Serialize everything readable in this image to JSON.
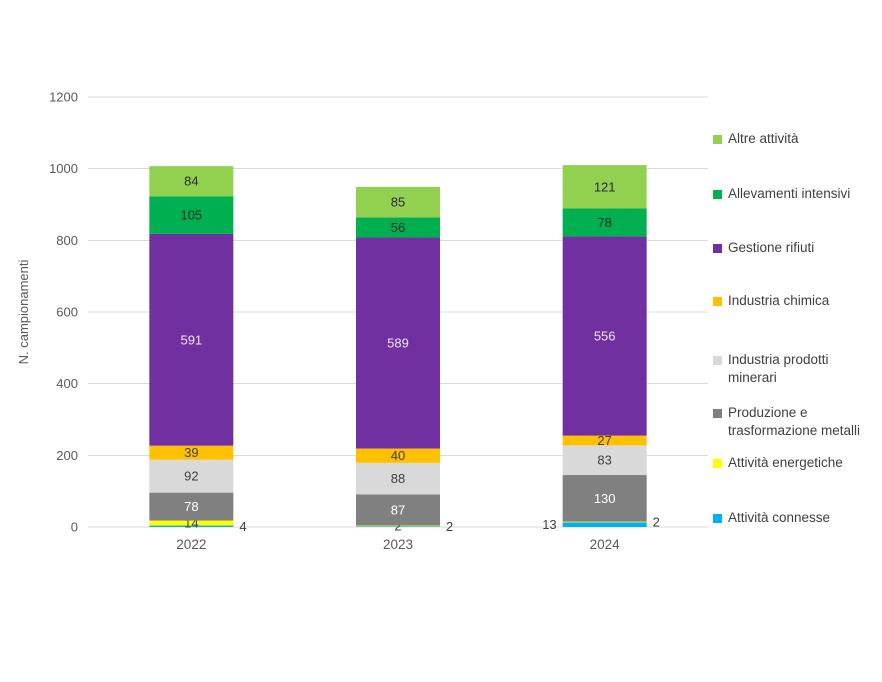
{
  "page": {
    "background_color": "#ffffff"
  },
  "chart_data": {
    "type": "bar",
    "variant": "stacked-vertical",
    "title": "",
    "xlabel": "",
    "ylabel": "N. campionamenti",
    "categories": [
      "2022",
      "2023",
      "2024"
    ],
    "ylim": [
      0,
      1200
    ],
    "yticks": [
      0,
      200,
      400,
      600,
      800,
      1000,
      1200
    ],
    "grid": "horizontal",
    "grid_color": "#d9d9d9",
    "tick_label_color": "#595959",
    "outside_label_color": "#404040",
    "legend_position": "right",
    "legend_order_note": "legend lists series top-of-stack first",
    "series": [
      {
        "name": "Attività connesse",
        "color": "#00b0f0",
        "values": [
          4,
          2,
          13
        ],
        "label_color": "#404040",
        "label_placement": [
          "outside-right",
          "outside-right",
          "outside-left"
        ]
      },
      {
        "name": "Attività energetiche",
        "color": "#ffff00",
        "values": [
          14,
          2,
          2
        ],
        "label_color": "#404040",
        "label_placement": [
          "center",
          "center",
          "outside-right"
        ]
      },
      {
        "name": "Produzione e trasformazione metalli",
        "color": "#808080",
        "values": [
          78,
          87,
          130
        ],
        "label_color": "#ffffff",
        "label_placement": [
          "center",
          "center",
          "center"
        ]
      },
      {
        "name": "Industria prodotti minerari",
        "color": "#d9d9d9",
        "values": [
          92,
          88,
          83
        ],
        "label_color": "#404040",
        "label_placement": [
          "center",
          "center",
          "center"
        ]
      },
      {
        "name": "Industria chimica",
        "color": "#ffc000",
        "values": [
          39,
          40,
          27
        ],
        "label_color": "#404040",
        "label_placement": [
          "center",
          "center",
          "center"
        ]
      },
      {
        "name": "Gestione rifiuti",
        "color": "#7030a0",
        "values": [
          591,
          589,
          556
        ],
        "label_color": "#f2e6f9",
        "label_placement": [
          "center",
          "center",
          "center"
        ]
      },
      {
        "name": "Allevamenti intensivi",
        "color": "#00b050",
        "values": [
          105,
          56,
          78
        ],
        "label_color": "#2a2a2a",
        "label_placement": [
          "center",
          "center",
          "center"
        ]
      },
      {
        "name": "Altre attività",
        "color": "#92d050",
        "values": [
          84,
          85,
          121
        ],
        "label_color": "#2a2a2a",
        "label_placement": [
          "center",
          "center",
          "center"
        ]
      }
    ]
  }
}
